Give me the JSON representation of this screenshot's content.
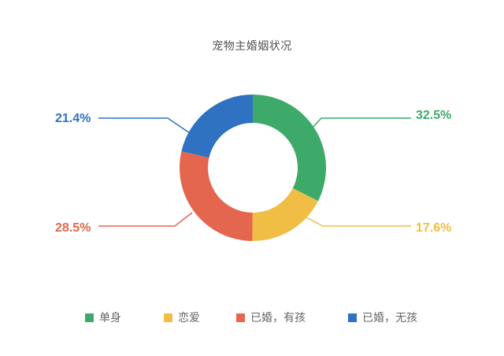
{
  "chart_data": {
    "type": "pie",
    "variant": "donut",
    "title": "宠物主婚姻状况",
    "categories": [
      "单身",
      "恋爱",
      "已婚，有孩",
      "已婚，无孩"
    ],
    "values": [
      32.5,
      17.6,
      28.5,
      21.4
    ],
    "labels": [
      "32.5%",
      "17.6%",
      "28.5%",
      "21.4%"
    ],
    "colors": [
      "#3daa6a",
      "#f0bd45",
      "#e4664e",
      "#2f72c2"
    ],
    "start_angle": "12 o'clock, clockwise",
    "legend_position": "bottom",
    "grid": false
  },
  "title": "宠物主婚姻状况",
  "labels": {
    "single": "32.5%",
    "dating": "17.6%",
    "married_kids": "28.5%",
    "married_nokids": "21.4%"
  },
  "legend": [
    {
      "label": "单身",
      "color": "#3daa6a"
    },
    {
      "label": "恋爱",
      "color": "#f0bd45"
    },
    {
      "label": "已婚，有孩",
      "color": "#e4664e"
    },
    {
      "label": "已婚，无孩",
      "color": "#2f72c2"
    }
  ]
}
